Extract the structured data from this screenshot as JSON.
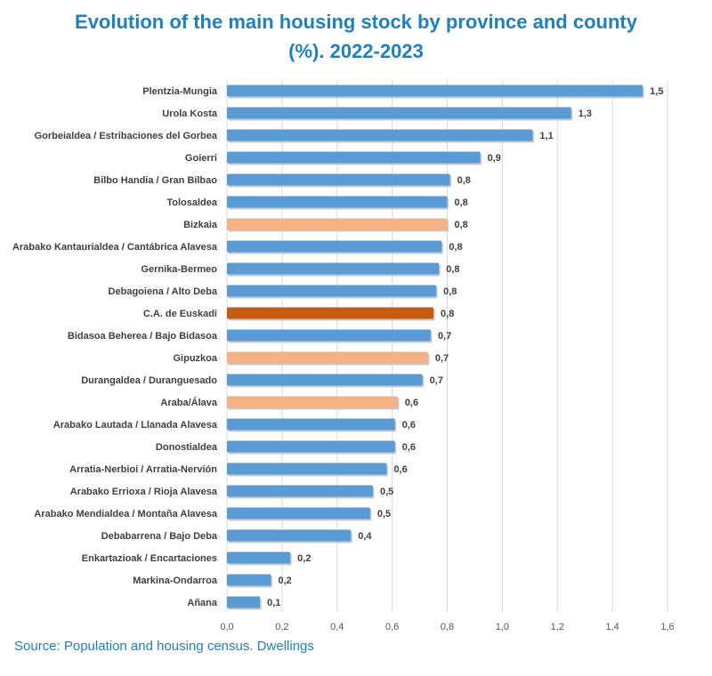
{
  "chart_data": {
    "type": "bar",
    "orientation": "horizontal",
    "title_lines": [
      "Evolution of the main housing stock by province and county",
      "(%). 2022-2023"
    ],
    "categories": [
      "Plentzia-Mungia",
      "Urola Kosta",
      "Gorbeialdea / Estribaciones del Gorbea",
      "Goierri",
      "Bilbo Handia / Gran Bilbao",
      "Tolosaldea",
      "Bizkaia",
      "Arabako Kantaurialdea / Cantábrica Alavesa",
      "Gernika-Bermeo",
      "Debagoiena / Alto Deba",
      "C.A. de Euskadi",
      "Bidasoa Beherea / Bajo Bidasoa",
      "Gipuzkoa",
      "Durangaldea / Duranguesado",
      "Araba/Álava",
      "Arabako Lautada / Llanada Alavesa",
      "Donostialdea",
      "Arratia-Nerbioi / Arratia-Nervión",
      "Arabako Errioxa / Rioja Alavesa",
      "Arabako Mendialdea / Montaña Alavesa",
      "Debabarrena / Bajo Deba",
      "Enkartazioak / Encartaciones",
      "Markina-Ondarroa",
      "Añana"
    ],
    "values": [
      1.51,
      1.25,
      1.11,
      0.92,
      0.81,
      0.8,
      0.8,
      0.78,
      0.77,
      0.76,
      0.75,
      0.74,
      0.73,
      0.71,
      0.62,
      0.61,
      0.61,
      0.58,
      0.53,
      0.52,
      0.45,
      0.23,
      0.16,
      0.12
    ],
    "labels": [
      "1,5",
      "1,3",
      "1,1",
      "0,9",
      "0,8",
      "0,8",
      "0,8",
      "0,8",
      "0,8",
      "0,8",
      "0,8",
      "0,7",
      "0,7",
      "0,7",
      "0,6",
      "0,6",
      "0,6",
      "0,6",
      "0,5",
      "0,5",
      "0,4",
      "0,2",
      "0,2",
      "0,1"
    ],
    "bar_roles": [
      "county",
      "county",
      "county",
      "county",
      "county",
      "county",
      "province",
      "county",
      "county",
      "county",
      "total",
      "county",
      "province",
      "county",
      "province",
      "county",
      "county",
      "county",
      "county",
      "county",
      "county",
      "county",
      "county",
      "county"
    ],
    "colors": {
      "county": "#5b9bd5",
      "province": "#f4b183",
      "total": "#c55a11"
    },
    "xlim": [
      0,
      1.6
    ],
    "xticks": [
      0,
      0.2,
      0.4,
      0.6,
      0.8,
      1.0,
      1.2,
      1.4,
      1.6
    ],
    "xtick_labels": [
      "0,0",
      "0,2",
      "0,4",
      "0,6",
      "0,8",
      "1,0",
      "1,2",
      "1,4",
      "1,6"
    ],
    "grid": true,
    "legend": "none"
  },
  "source": "Source: Population and housing census. Dwellings"
}
